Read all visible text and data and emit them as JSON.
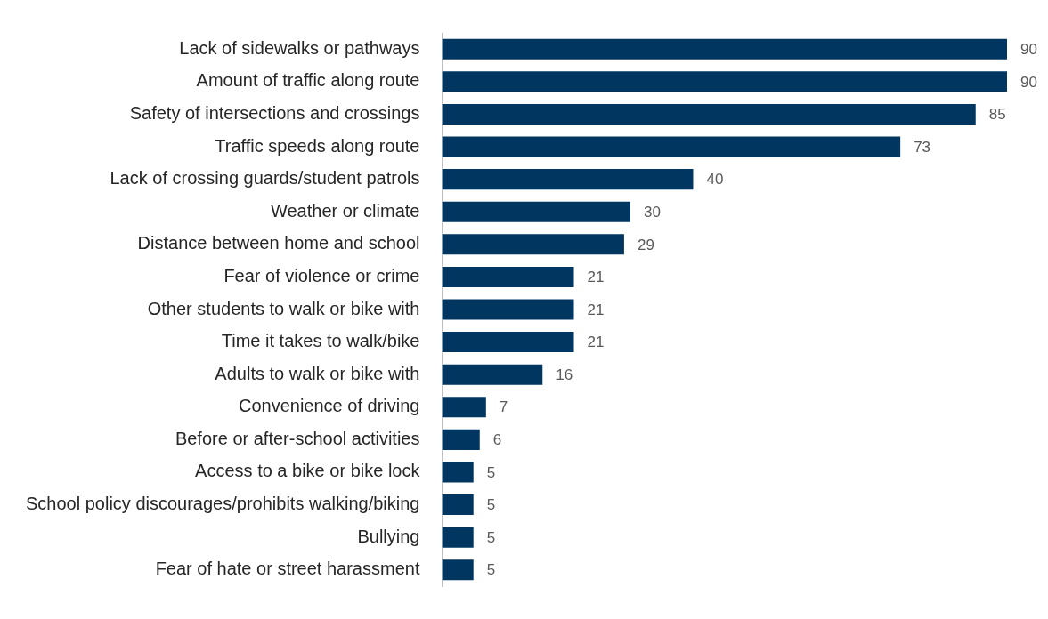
{
  "chart_data": {
    "type": "bar",
    "orientation": "horizontal",
    "data_labels": true,
    "grid": false,
    "legend": false,
    "categories": [
      "Lack of sidewalks or pathways",
      "Amount of traffic along route",
      "Safety of intersections and crossings",
      "Traffic speeds along route",
      "Lack of crossing guards/student patrols",
      "Weather or climate",
      "Distance between home and school",
      "Fear of violence or crime",
      "Other students to walk or bike with",
      "Time it takes to walk/bike",
      "Adults to walk or bike with",
      "Convenience of driving",
      "Before or after-school activities",
      "Access to a bike or bike lock",
      "School policy discourages/prohibits walking/biking",
      "Bullying",
      "Fear of hate or street harassment"
    ],
    "values": [
      90,
      90,
      85,
      73,
      40,
      30,
      29,
      21,
      21,
      21,
      16,
      7,
      6,
      5,
      5,
      5,
      5
    ],
    "color": "#003660"
  }
}
